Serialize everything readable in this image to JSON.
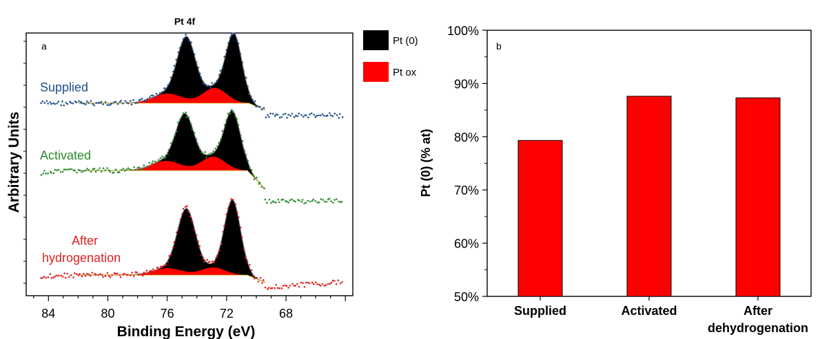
{
  "panel_a": {
    "title": "Pt 4f",
    "label": "a",
    "xlabel": "Binding Energy (eV)",
    "ylabel": "Arbitrary Units",
    "xticks": [
      "84",
      "80",
      "76",
      "72",
      "68"
    ],
    "legend": [
      {
        "label": "Pt (0)",
        "color": "#000000"
      },
      {
        "label": "Pt ox",
        "color": "#ff0000"
      }
    ],
    "spectra": [
      {
        "name": "Supplied",
        "color": "#1f4e8c"
      },
      {
        "name": "Activated",
        "color": "#2e8b2e"
      },
      {
        "name": "After",
        "name2": "hydrogenation",
        "color": "#e02020"
      }
    ]
  },
  "chart_data": [
    {
      "type": "line",
      "title": "Pt 4f",
      "xlabel": "Binding Energy (eV)",
      "ylabel": "Arbitrary Units",
      "xlim": [
        85.5,
        63.5
      ],
      "xticks": [
        84,
        80,
        76,
        72,
        68
      ],
      "series": [
        {
          "name": "Supplied",
          "peaks_eV": [
            74.7,
            71.5
          ],
          "pt_ox_peaks_eV": [
            76.0,
            72.8
          ]
        },
        {
          "name": "Activated",
          "peaks_eV": [
            74.8,
            71.6
          ],
          "pt_ox_peaks_eV": [
            76.1,
            72.9
          ]
        },
        {
          "name": "After hydrogenation",
          "peaks_eV": [
            74.7,
            71.6
          ],
          "pt_ox_peaks_eV": [
            76.0,
            72.9
          ]
        }
      ]
    },
    {
      "type": "bar",
      "label": "b",
      "categories": [
        "Supplied",
        "Activated",
        "After dehydrogenation"
      ],
      "values": [
        79.3,
        87.6,
        87.3
      ],
      "xlabel": "",
      "ylabel": "Pt (0) (% at)",
      "ylim": [
        50,
        100
      ],
      "yticks": [
        "50%",
        "60%",
        "70%",
        "80%",
        "90%",
        "100%"
      ],
      "bar_color": "#ff0000"
    }
  ]
}
